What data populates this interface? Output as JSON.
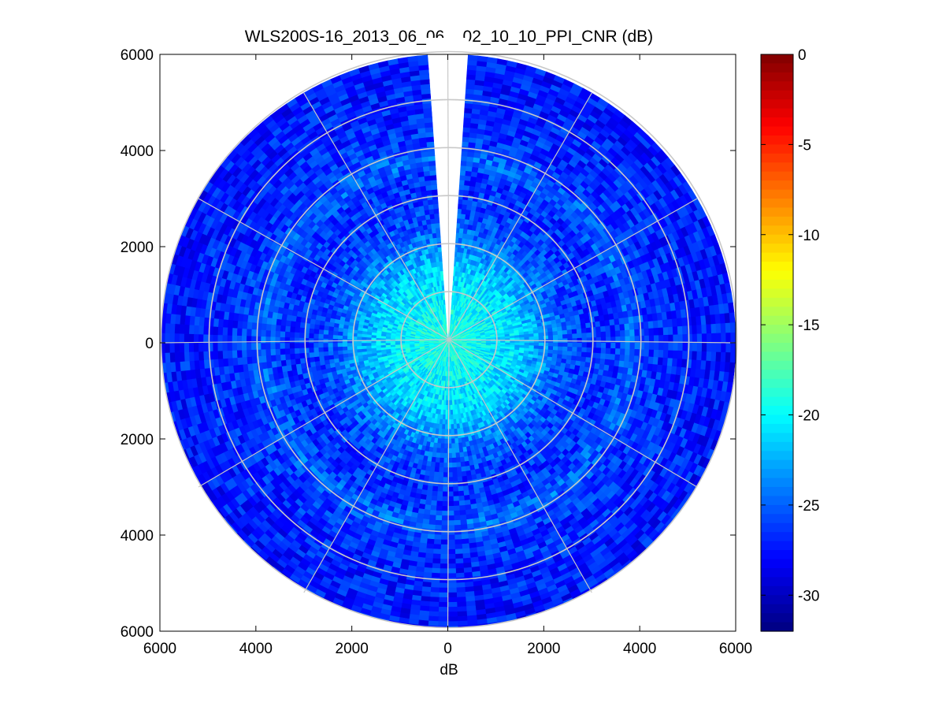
{
  "chart_data": {
    "type": "heatmap",
    "title": "WLS200S-16_2013_06_06__02_10_10_PPI_CNR (dB)",
    "xlabel": "dB",
    "ylabel": "",
    "xlim": [
      -6000,
      6000
    ],
    "ylim": [
      -6000,
      6000
    ],
    "x_tick_labels": [
      "6000",
      "4000",
      "2000",
      "0",
      "2000",
      "4000",
      "6000"
    ],
    "y_tick_labels": [
      "6000",
      "4000",
      "2000",
      "0",
      "2000",
      "4000",
      "6000"
    ],
    "colorbar": {
      "colormap": "jet",
      "clim": [
        -32,
        0
      ],
      "tick_labels": [
        "0",
        "-5",
        "-10",
        "-15",
        "-20",
        "-25",
        "-30"
      ]
    },
    "polar_grid": {
      "range_rings": [
        1000,
        2000,
        3000,
        4000,
        5000,
        6000
      ],
      "spoke_step_deg": 30
    },
    "data_gap_azimuth_deg": [
      -4,
      4
    ],
    "cnr_profile_db": {
      "range_m": [
        0,
        500,
        1000,
        1500,
        2000,
        2500,
        3000,
        3500,
        3800,
        4200,
        5000,
        6000
      ],
      "mean_cnr": [
        -19,
        -19.5,
        -20.5,
        -21.5,
        -23.5,
        -25.5,
        -26.5,
        -26.5,
        -24.5,
        -26.5,
        -27,
        -27.5
      ]
    },
    "grid": true
  },
  "colors": {
    "grid_line": "#c8c8c8",
    "axes_frame": "#000000",
    "background": "#ffffff"
  }
}
